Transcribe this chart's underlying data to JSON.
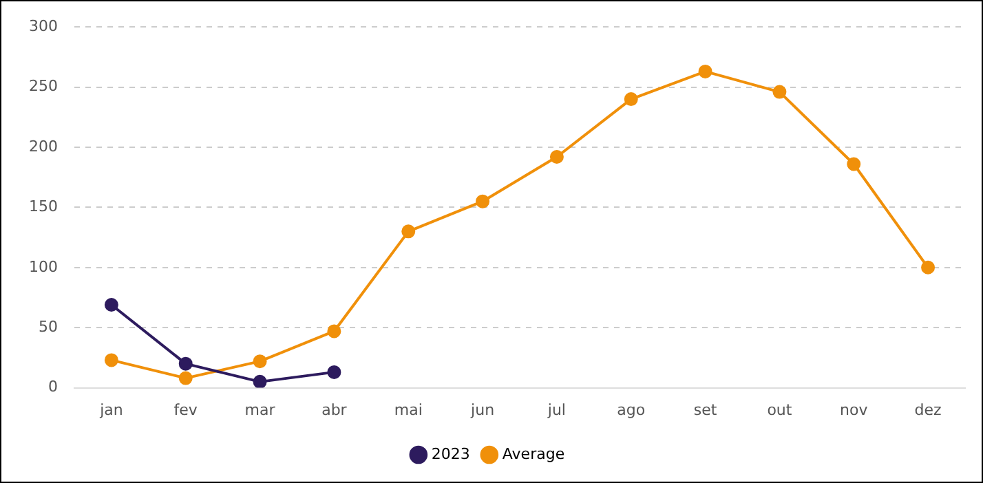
{
  "chart_data": {
    "type": "line",
    "categories": [
      "jan",
      "fev",
      "mar",
      "abr",
      "mai",
      "jun",
      "jul",
      "ago",
      "set",
      "out",
      "nov",
      "dez"
    ],
    "series": [
      {
        "name": "2023",
        "color": "#2d1b5e",
        "values": [
          69,
          20,
          5,
          13,
          null,
          null,
          null,
          null,
          null,
          null,
          null,
          null
        ]
      },
      {
        "name": "Average",
        "color": "#f0900a",
        "values": [
          23,
          8,
          22,
          47,
          130,
          155,
          192,
          240,
          263,
          246,
          186,
          100
        ]
      }
    ],
    "ylim": [
      0,
      300
    ],
    "yticks": [
      0,
      50,
      100,
      150,
      200,
      250,
      300
    ],
    "grid": "y",
    "legend": "bottom",
    "marker": "circle",
    "line_style": "solid"
  }
}
